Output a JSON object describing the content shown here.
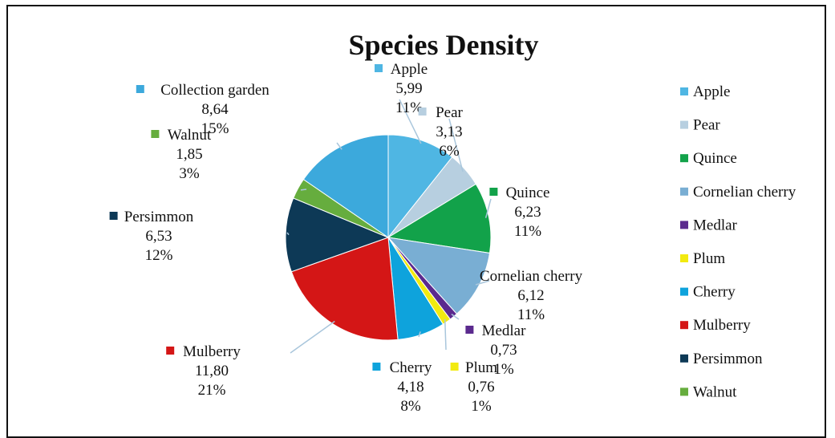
{
  "chart_data": {
    "type": "pie",
    "title": "Species Density",
    "slices": [
      {
        "label": "Apple",
        "value_text": "5,99",
        "value": 5.99,
        "percent": "11%",
        "color": "#4fb6e3"
      },
      {
        "label": "Pear",
        "value_text": "3,13",
        "value": 3.13,
        "percent": "6%",
        "color": "#b7cfe0"
      },
      {
        "label": "Quince",
        "value_text": "6,23",
        "value": 6.23,
        "percent": "11%",
        "color": "#12a24a"
      },
      {
        "label": "Cornelian cherry",
        "value_text": "6,12",
        "value": 6.12,
        "percent": "11%",
        "color": "#79aed3"
      },
      {
        "label": "Medlar",
        "value_text": "0,73",
        "value": 0.73,
        "percent": "1%",
        "color": "#5b2a8e"
      },
      {
        "label": "Plum",
        "value_text": "0,76",
        "value": 0.76,
        "percent": "1%",
        "color": "#f2ea10"
      },
      {
        "label": "Cherry",
        "value_text": "4,18",
        "value": 4.18,
        "percent": "8%",
        "color": "#0ea3dc"
      },
      {
        "label": "Mulberry",
        "value_text": "11,80",
        "value": 11.8,
        "percent": "21%",
        "color": "#d41616"
      },
      {
        "label": "Persimmon",
        "value_text": "6,53",
        "value": 6.53,
        "percent": "12%",
        "color": "#0d3956"
      },
      {
        "label": "Walnut",
        "value_text": "1,85",
        "value": 1.85,
        "percent": "3%",
        "color": "#66ad3e"
      },
      {
        "label": "Collection garden",
        "value_text": "8,64",
        "value": 8.64,
        "percent": "15%",
        "color": "#3ca9dc"
      }
    ],
    "legend": {
      "placement": "right",
      "entries": [
        "Apple",
        "Pear",
        "Quince",
        "Cornelian cherry",
        "Medlar",
        "Plum",
        "Cherry",
        "Mulberry",
        "Persimmon",
        "Walnut"
      ]
    }
  }
}
